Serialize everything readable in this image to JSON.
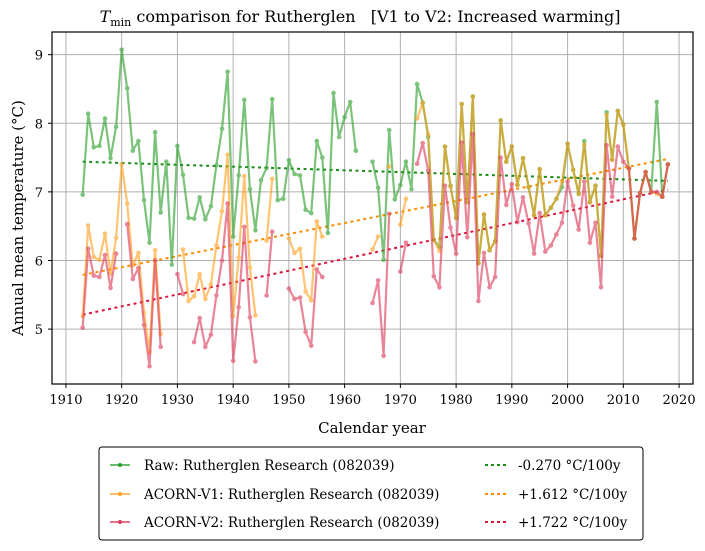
{
  "chart_data": {
    "type": "line",
    "title": {
      "main": "T",
      "sub": "min",
      "rest": " comparison for Rutherglen   [V1 to V2: Increased warming]"
    },
    "xlabel": "Calendar year",
    "ylabel": "Annual mean temperature (°C)",
    "xlim": [
      1907.5,
      2022.5
    ],
    "ylim": [
      4.2,
      9.33
    ],
    "xticks": [
      1910,
      1920,
      1930,
      1940,
      1950,
      1960,
      1970,
      1980,
      1990,
      2000,
      2010,
      2020
    ],
    "yticks": [
      5,
      6,
      7,
      8,
      9
    ],
    "grid": true,
    "legend_position": "below",
    "series": [
      {
        "name": "Raw: Rutherglen Research (082039)",
        "color": "#2ca02c",
        "x": [
          1913,
          1914,
          1915,
          1916,
          1917,
          1918,
          1919,
          1920,
          1921,
          1922,
          1923,
          1924,
          1925,
          1926,
          1927,
          1928,
          1929,
          1930,
          1931,
          1932,
          1933,
          1934,
          1935,
          1936,
          1937,
          1938,
          1939,
          1940,
          1941,
          1942,
          1943,
          1944,
          1945,
          1946,
          1947,
          1948,
          1949,
          1950,
          1951,
          1952,
          1953,
          1954,
          1955,
          1956,
          1957,
          1958,
          1959,
          1960,
          1961,
          1962,
          1963,
          1964,
          1965,
          1966,
          1967,
          1968,
          1969,
          1970,
          1971,
          1972,
          1973,
          1974,
          1975,
          1976,
          1977,
          1978,
          1979,
          1980,
          1981,
          1982,
          1983,
          1984,
          1985,
          1986,
          1987,
          1988,
          1989,
          1990,
          1991,
          1992,
          1993,
          1994,
          1995,
          1996,
          1997,
          1998,
          1999,
          2000,
          2001,
          2002,
          2003,
          2004,
          2005,
          2006,
          2007,
          2008,
          2009,
          2010,
          2011,
          2012,
          2013,
          2014,
          2015,
          2016,
          2017,
          2018
        ],
        "y": [
          6.96,
          8.14,
          7.65,
          7.67,
          8.07,
          7.49,
          7.95,
          9.07,
          8.51,
          7.6,
          7.74,
          6.88,
          6.26,
          7.87,
          6.7,
          7.44,
          5.94,
          7.67,
          7.25,
          6.62,
          6.61,
          6.92,
          6.6,
          6.79,
          7.39,
          7.92,
          8.75,
          6.35,
          7.24,
          8.34,
          7.04,
          6.44,
          7.17,
          7.35,
          8.35,
          6.88,
          6.9,
          7.46,
          7.26,
          7.24,
          6.74,
          6.69,
          7.74,
          7.5,
          6.4,
          8.44,
          7.8,
          8.09,
          8.31,
          7.6,
          null,
          null,
          7.44,
          7.06,
          6.01,
          7.9,
          6.89,
          7.1,
          7.44,
          7.04,
          8.57,
          8.3,
          7.8,
          6.3,
          6.2,
          7.66,
          7.09,
          6.62,
          8.28,
          6.85,
          8.39,
          5.96,
          6.67,
          6.15,
          6.28,
          8.04,
          7.44,
          7.66,
          7.1,
          7.49,
          7.07,
          6.66,
          7.33,
          6.66,
          6.77,
          6.9,
          7.07,
          7.7,
          7.32,
          6.97,
          7.74,
          6.85,
          7.09,
          6.07,
          8.16,
          7.47,
          8.18,
          7.98,
          7.34,
          6.32,
          6.98,
          7.29,
          7.0,
          8.31,
          6.93,
          7.4
        ]
      },
      {
        "name": "ACORN-V1: Rutherglen Research (082039)",
        "color": "#ff9f1c",
        "x": [
          1913,
          1914,
          1915,
          1916,
          1917,
          1918,
          1919,
          1920,
          1921,
          1922,
          1923,
          1924,
          1925,
          1926,
          1927,
          1928,
          1929,
          1930,
          1931,
          1932,
          1933,
          1934,
          1935,
          1936,
          1937,
          1938,
          1939,
          1940,
          1941,
          1942,
          1943,
          1944,
          1945,
          1946,
          1947,
          1948,
          1949,
          1950,
          1951,
          1952,
          1953,
          1954,
          1955,
          1956,
          1957,
          1958,
          1959,
          1960,
          1961,
          1962,
          1963,
          1964,
          1965,
          1966,
          1967,
          1968,
          1969,
          1970,
          1971,
          1972,
          1973,
          1974,
          1975,
          1976,
          1977,
          1978,
          1979,
          1980,
          1981,
          1982,
          1983,
          1984,
          1985,
          1986,
          1987,
          1988,
          1989,
          1990,
          1991,
          1992,
          1993,
          1994,
          1995,
          1996,
          1997,
          1998,
          1999,
          2000,
          2001,
          2002,
          2003,
          2004,
          2005,
          2006,
          2007,
          2008,
          2009,
          2010,
          2011,
          2012,
          2013,
          2014,
          2015,
          2016,
          2017,
          2018
        ],
        "y": [
          5.19,
          6.51,
          6.05,
          6.01,
          6.39,
          5.81,
          6.33,
          7.4,
          6.83,
          5.93,
          6.11,
          5.24,
          4.67,
          6.15,
          4.93,
          null,
          null,
          null,
          6.16,
          5.41,
          5.48,
          5.8,
          5.44,
          5.65,
          6.22,
          6.72,
          7.54,
          5.19,
          6.04,
          7.23,
          5.9,
          5.2,
          null,
          6.29,
          7.19,
          null,
          null,
          6.32,
          6.11,
          6.17,
          5.55,
          5.42,
          6.57,
          6.35,
          null,
          null,
          null,
          null,
          null,
          null,
          null,
          null,
          6.16,
          6.35,
          null,
          7.37,
          null,
          6.52,
          6.9,
          null,
          8.07,
          8.3,
          7.84,
          6.3,
          6.14,
          7.66,
          7.08,
          6.62,
          8.28,
          6.85,
          8.39,
          5.96,
          6.67,
          6.15,
          6.28,
          8.04,
          7.44,
          7.66,
          7.1,
          7.49,
          7.07,
          6.66,
          7.33,
          6.66,
          6.77,
          6.9,
          7.15,
          7.7,
          7.32,
          6.97,
          7.69,
          6.85,
          7.09,
          6.07,
          8.12,
          7.47,
          8.18,
          7.98,
          7.34,
          6.32,
          6.98,
          7.29,
          7.0,
          6.97,
          6.93,
          7.4
        ]
      },
      {
        "name": "ACORN-V2: Rutherglen Research (082039)",
        "color": "#dc3c5a",
        "x": [
          1913,
          1914,
          1915,
          1916,
          1917,
          1918,
          1919,
          1920,
          1921,
          1922,
          1923,
          1924,
          1925,
          1926,
          1927,
          1928,
          1929,
          1930,
          1931,
          1932,
          1933,
          1934,
          1935,
          1936,
          1937,
          1938,
          1939,
          1940,
          1941,
          1942,
          1943,
          1944,
          1945,
          1946,
          1947,
          1948,
          1949,
          1950,
          1951,
          1952,
          1953,
          1954,
          1955,
          1956,
          1957,
          1958,
          1959,
          1960,
          1961,
          1962,
          1963,
          1964,
          1965,
          1966,
          1967,
          1968,
          1969,
          1970,
          1971,
          1972,
          1973,
          1974,
          1975,
          1976,
          1977,
          1978,
          1979,
          1980,
          1981,
          1982,
          1983,
          1984,
          1985,
          1986,
          1987,
          1988,
          1989,
          1990,
          1991,
          1992,
          1993,
          1994,
          1995,
          1996,
          1997,
          1998,
          1999,
          2000,
          2001,
          2002,
          2003,
          2004,
          2005,
          2006,
          2007,
          2008,
          2009,
          2010,
          2011,
          2012,
          2013,
          2014,
          2015,
          2016,
          2017,
          2018
        ],
        "y": [
          5.02,
          6.17,
          5.78,
          5.76,
          6.08,
          5.6,
          6.1,
          null,
          6.53,
          5.73,
          5.89,
          5.06,
          4.46,
          6.0,
          4.74,
          null,
          null,
          5.8,
          5.51,
          null,
          4.81,
          5.16,
          4.74,
          4.92,
          5.49,
          6.0,
          6.83,
          4.54,
          5.32,
          6.49,
          5.17,
          4.53,
          null,
          5.49,
          6.42,
          null,
          null,
          5.59,
          5.44,
          5.46,
          4.96,
          4.76,
          5.87,
          5.76,
          null,
          null,
          null,
          null,
          null,
          null,
          null,
          null,
          5.38,
          5.71,
          4.61,
          6.68,
          null,
          5.84,
          6.26,
          null,
          7.41,
          7.71,
          7.31,
          5.77,
          5.61,
          7.09,
          6.48,
          6.1,
          7.72,
          6.34,
          7.84,
          5.41,
          6.11,
          5.61,
          5.76,
          7.5,
          6.81,
          7.11,
          6.56,
          6.92,
          6.54,
          6.1,
          6.69,
          6.13,
          6.22,
          6.38,
          6.55,
          7.15,
          6.8,
          6.45,
          7.15,
          6.26,
          6.55,
          5.61,
          7.68,
          6.93,
          7.66,
          7.44,
          7.34,
          6.32,
          6.98,
          7.29,
          7.0,
          7.0,
          6.93,
          7.4
        ]
      }
    ],
    "trends": [
      {
        "label": "-0.270 °C/100y",
        "color": "#1a8c1a",
        "slope_per_100y": -0.27,
        "x": [
          1913,
          2018
        ],
        "y": [
          7.44,
          7.16
        ]
      },
      {
        "label": "+1.612 °C/100y",
        "color": "#ff8c00",
        "slope_per_100y": 1.612,
        "x": [
          1913,
          2018
        ],
        "y": [
          5.79,
          7.48
        ]
      },
      {
        "label": "+1.722 °C/100y",
        "color": "#dc143c",
        "slope_per_100y": 1.722,
        "x": [
          1913,
          2018
        ],
        "y": [
          5.21,
          7.03
        ]
      }
    ]
  }
}
